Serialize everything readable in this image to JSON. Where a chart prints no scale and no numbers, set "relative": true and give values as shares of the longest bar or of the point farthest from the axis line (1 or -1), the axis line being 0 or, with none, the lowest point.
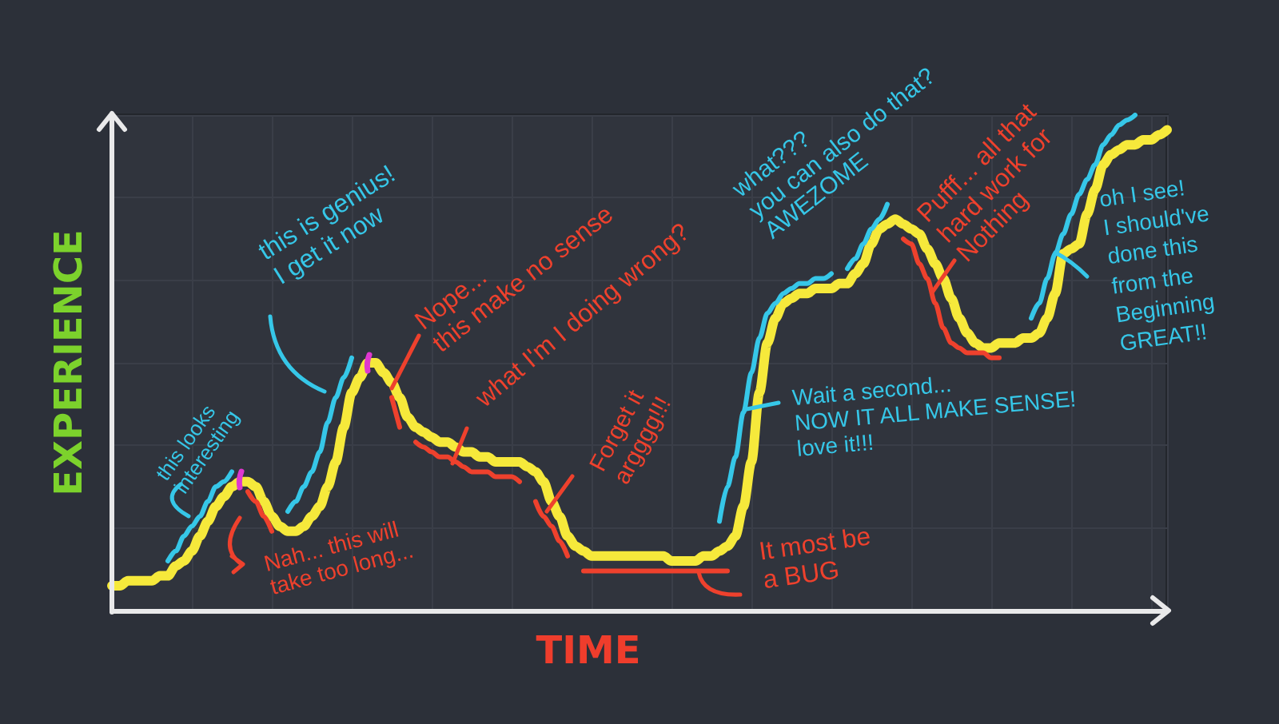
{
  "chart_data": {
    "type": "line",
    "relative": true,
    "xlabel": "TIME",
    "ylabel": "EXPERIENCE",
    "grid": true,
    "categories": [
      null,
      null,
      null,
      null,
      null,
      null,
      null,
      null,
      null,
      null,
      null,
      null,
      null,
      null,
      null,
      null,
      null,
      null,
      null,
      null,
      null,
      null,
      null,
      null,
      null,
      null,
      null,
      null,
      null,
      null,
      null,
      null,
      null,
      null,
      null,
      null,
      null,
      null,
      null,
      null,
      null,
      null,
      null,
      null,
      null,
      null,
      null,
      null,
      null,
      null,
      null,
      null,
      null,
      null,
      null,
      null,
      null,
      null,
      null,
      null,
      null,
      null,
      null,
      null,
      null,
      null,
      null,
      null,
      null,
      null,
      null,
      null,
      null,
      null,
      null,
      null,
      null,
      null,
      null,
      null,
      null,
      null,
      null,
      null,
      null,
      null,
      null,
      null,
      null,
      null,
      null,
      null,
      null,
      null,
      null,
      null,
      null,
      null,
      null,
      null,
      null,
      null,
      null,
      null,
      null,
      null,
      null,
      null,
      null,
      null,
      null,
      null,
      null,
      null,
      null,
      null,
      null,
      null,
      null,
      null,
      null,
      null,
      null,
      null,
      null,
      null,
      null,
      null,
      null,
      null,
      null,
      null,
      null
    ],
    "series": [
      {
        "color": "#f6e93b",
        "values": [
          0.05,
          0.05,
          0.06,
          0.06,
          0.06,
          0.06,
          0.07,
          0.07,
          0.09,
          0.1,
          0.12,
          0.15,
          0.18,
          0.21,
          0.23,
          0.25,
          0.26,
          0.26,
          0.25,
          0.22,
          0.19,
          0.17,
          0.16,
          0.16,
          0.17,
          0.19,
          0.21,
          0.25,
          0.3,
          0.37,
          0.44,
          0.47,
          0.5,
          0.5,
          0.48,
          0.46,
          0.43,
          0.39,
          0.37,
          0.36,
          0.35,
          0.34,
          0.34,
          0.33,
          0.32,
          0.32,
          0.31,
          0.31,
          0.3,
          0.3,
          0.3,
          0.3,
          0.29,
          0.28,
          0.26,
          0.22,
          0.19,
          0.15,
          0.13,
          0.12,
          0.11,
          0.11,
          0.11,
          0.11,
          0.11,
          0.11,
          0.11,
          0.11,
          0.11,
          0.11,
          0.1,
          0.1,
          0.1,
          0.1,
          0.11,
          0.11,
          0.12,
          0.13,
          0.15,
          0.21,
          0.3,
          0.44,
          0.54,
          0.59,
          0.62,
          0.63,
          0.64,
          0.64,
          0.65,
          0.65,
          0.65,
          0.66,
          0.66,
          0.68,
          0.7,
          0.74,
          0.77,
          0.78,
          0.79,
          0.78,
          0.77,
          0.76,
          0.73,
          0.7,
          0.67,
          0.63,
          0.59,
          0.56,
          0.54,
          0.53,
          0.53,
          0.54,
          0.54,
          0.54,
          0.55,
          0.55,
          0.56,
          0.59,
          0.64,
          0.72,
          0.73,
          0.74,
          0.8,
          0.85,
          0.9,
          0.92,
          0.93,
          0.94,
          0.94,
          0.95,
          0.95,
          0.96,
          0.97
        ]
      },
      {
        "color": "#36c7e8",
        "values": [
          null,
          null,
          null,
          null,
          null,
          null,
          null,
          0.1,
          0.12,
          0.15,
          0.17,
          0.19,
          0.22,
          0.25,
          0.26,
          0.28,
          null,
          null,
          null,
          null,
          null,
          null,
          0.2,
          0.22,
          0.25,
          0.28,
          0.32,
          0.38,
          0.43,
          0.47,
          0.51,
          null,
          null,
          null,
          null,
          null,
          null,
          null,
          null,
          null,
          null,
          null,
          null,
          null,
          null,
          null,
          null,
          null,
          null,
          null,
          null,
          null,
          null,
          null,
          null,
          null,
          null,
          null,
          null,
          null,
          null,
          null,
          null,
          null,
          null,
          null,
          null,
          null,
          null,
          null,
          null,
          null,
          null,
          null,
          null,
          null,
          0.18,
          0.25,
          0.31,
          0.4,
          0.48,
          0.55,
          0.6,
          0.62,
          0.64,
          0.65,
          0.66,
          0.66,
          0.67,
          0.67,
          0.68,
          null,
          0.69,
          0.71,
          0.74,
          0.77,
          0.79,
          0.82,
          null,
          null,
          null,
          null,
          null,
          null,
          null,
          null,
          null,
          null,
          null,
          null,
          null,
          null,
          null,
          null,
          null,
          0.59,
          0.62,
          0.67,
          0.72,
          0.76,
          0.8,
          0.84,
          0.87,
          0.9,
          0.94,
          0.96,
          0.98,
          0.99,
          1.0,
          null,
          null,
          null,
          null
        ]
      },
      {
        "color": "#ee412d",
        "values": [
          null,
          null,
          null,
          null,
          null,
          null,
          null,
          null,
          null,
          null,
          null,
          null,
          null,
          null,
          null,
          null,
          null,
          0.24,
          0.22,
          0.19,
          0.16,
          null,
          null,
          null,
          null,
          null,
          null,
          null,
          null,
          null,
          null,
          null,
          null,
          null,
          null,
          0.43,
          0.37,
          null,
          0.34,
          0.33,
          0.32,
          0.31,
          0.31,
          0.3,
          0.29,
          0.28,
          0.28,
          0.28,
          0.27,
          0.27,
          0.27,
          0.26,
          null,
          0.22,
          0.19,
          0.17,
          0.14,
          0.11,
          null,
          0.08,
          0.08,
          0.08,
          0.08,
          0.08,
          0.08,
          0.08,
          0.08,
          0.08,
          0.08,
          0.08,
          0.08,
          0.08,
          0.08,
          0.08,
          0.08,
          0.08,
          0.08,
          0.08,
          null,
          null,
          null,
          null,
          null,
          null,
          null,
          null,
          null,
          null,
          null,
          null,
          null,
          null,
          null,
          null,
          null,
          null,
          null,
          null,
          null,
          0.75,
          0.74,
          0.7,
          0.67,
          0.62,
          0.57,
          0.54,
          0.53,
          0.52,
          0.52,
          0.52,
          0.51,
          0.51,
          null,
          null,
          null,
          null,
          null,
          null,
          null,
          null,
          null,
          null,
          null,
          null,
          null,
          null,
          null,
          null,
          null,
          null,
          null,
          null,
          null
        ]
      }
    ],
    "annotations": [
      "this looks\ninteresting",
      "this is genius!\nI get it now",
      "Nah... this will\ntake too long...",
      "Nope...\nthis make no sense",
      "what I'm I doing wrong?",
      "Forget it\nargggg!!!",
      "It most be\na BUG",
      "what???\nyou can also do that?\nAWEZOME",
      "Pufff... all that\nhard work for\nNothing",
      "Wait a second...\nNOW IT ALL MAKE SENSE!\nlove it!!!",
      "oh I see!\nI should've\ndone this\nfrom the\nBeginning\nGREAT!!"
    ]
  }
}
